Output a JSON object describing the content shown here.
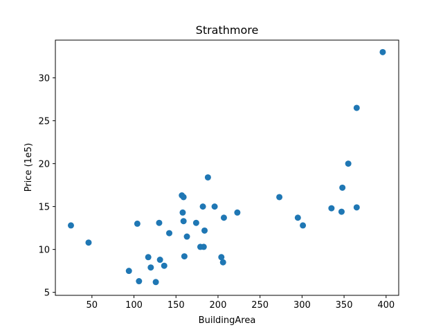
{
  "chart_data": {
    "type": "scatter",
    "title": "Strathmore",
    "xlabel": "BuildingArea",
    "ylabel": "Price (1e5)",
    "xlim": [
      6.5,
      415
    ],
    "ylim": [
      4.65,
      34.4
    ],
    "xticks": [
      50,
      100,
      150,
      200,
      250,
      300,
      350,
      400
    ],
    "yticks": [
      5,
      10,
      15,
      20,
      25,
      30
    ],
    "grid": false,
    "legend": "none",
    "marker_color": "#1f77b4",
    "points": [
      {
        "x": 25,
        "y": 12.8
      },
      {
        "x": 46,
        "y": 10.8
      },
      {
        "x": 94,
        "y": 7.5
      },
      {
        "x": 104,
        "y": 13.0
      },
      {
        "x": 106,
        "y": 6.3
      },
      {
        "x": 117,
        "y": 9.1
      },
      {
        "x": 120,
        "y": 7.9
      },
      {
        "x": 126,
        "y": 6.2
      },
      {
        "x": 130,
        "y": 13.1
      },
      {
        "x": 131,
        "y": 8.8
      },
      {
        "x": 136,
        "y": 8.1
      },
      {
        "x": 142,
        "y": 11.9
      },
      {
        "x": 157,
        "y": 16.3
      },
      {
        "x": 158,
        "y": 14.3
      },
      {
        "x": 159,
        "y": 13.3
      },
      {
        "x": 159,
        "y": 16.1
      },
      {
        "x": 160,
        "y": 9.2
      },
      {
        "x": 163,
        "y": 11.5
      },
      {
        "x": 174,
        "y": 13.1
      },
      {
        "x": 179,
        "y": 10.3
      },
      {
        "x": 182,
        "y": 15.0
      },
      {
        "x": 183,
        "y": 10.3
      },
      {
        "x": 184,
        "y": 12.2
      },
      {
        "x": 188,
        "y": 18.4
      },
      {
        "x": 196,
        "y": 15.0
      },
      {
        "x": 204,
        "y": 9.1
      },
      {
        "x": 206,
        "y": 8.5
      },
      {
        "x": 207,
        "y": 13.7
      },
      {
        "x": 223,
        "y": 14.3
      },
      {
        "x": 273,
        "y": 16.1
      },
      {
        "x": 295,
        "y": 13.7
      },
      {
        "x": 301,
        "y": 12.8
      },
      {
        "x": 335,
        "y": 14.8
      },
      {
        "x": 347,
        "y": 14.4
      },
      {
        "x": 348,
        "y": 17.2
      },
      {
        "x": 355,
        "y": 20.0
      },
      {
        "x": 365,
        "y": 26.5
      },
      {
        "x": 365,
        "y": 14.9
      },
      {
        "x": 396,
        "y": 33.0
      }
    ]
  }
}
